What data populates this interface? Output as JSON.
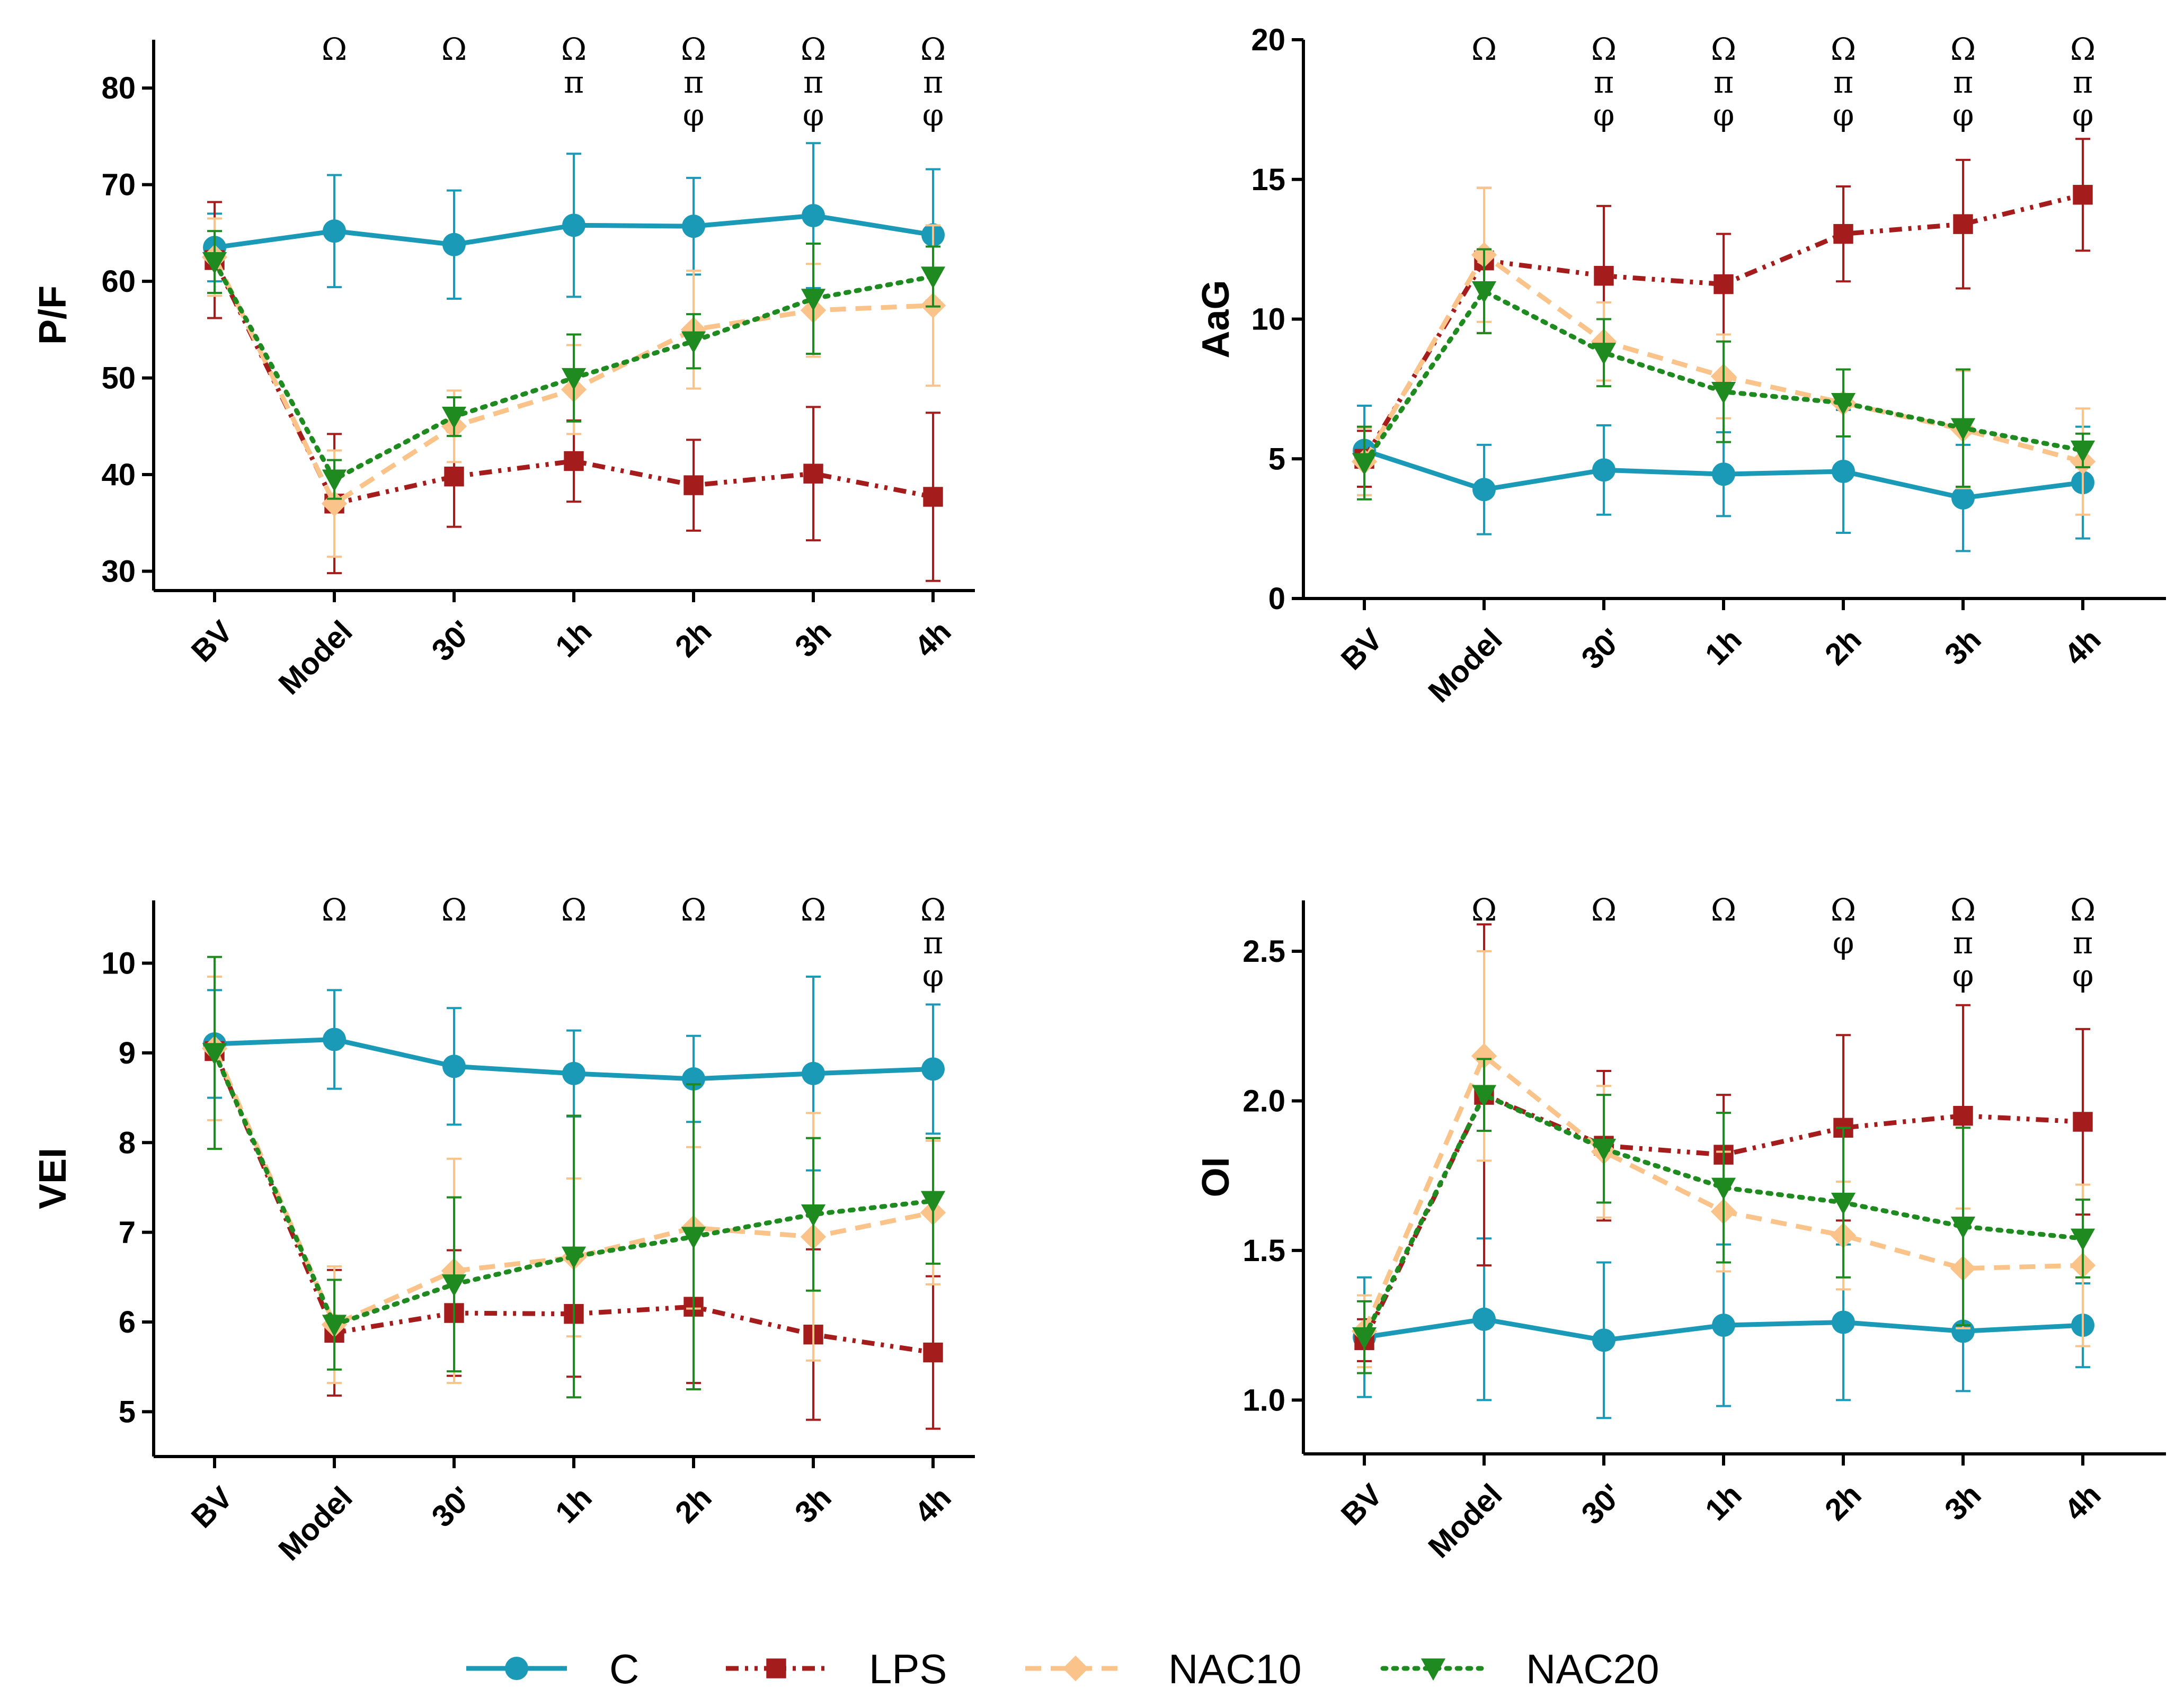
{
  "colors": {
    "C": "#1b9ab8",
    "LPS": "#a51c1c",
    "NAC10": "#f9c38a",
    "NAC20": "#1f8a1f"
  },
  "legend": [
    {
      "key": "C",
      "label": "C",
      "marker": "circle",
      "dash": "solid"
    },
    {
      "key": "LPS",
      "label": "LPS",
      "marker": "square",
      "dash": "dashdot"
    },
    {
      "key": "NAC10",
      "label": "NAC10",
      "marker": "diamond",
      "dash": "dash"
    },
    {
      "key": "NAC20",
      "label": "NAC20",
      "marker": "triangle-down",
      "dash": "dot"
    }
  ],
  "chart_data": [
    {
      "id": "pf",
      "type": "line",
      "ylabel": "P/F",
      "categories": [
        "BV",
        "Model",
        "30'",
        "1h",
        "2h",
        "3h",
        "4h"
      ],
      "ylim": [
        28,
        85
      ],
      "yticks": [
        "30",
        "40",
        "50",
        "60",
        "70",
        "80"
      ],
      "annotations": [
        [],
        [
          "Ω"
        ],
        [
          "Ω"
        ],
        [
          "Ω",
          "π"
        ],
        [
          "Ω",
          "π",
          "φ"
        ],
        [
          "Ω",
          "π",
          "φ"
        ],
        [
          "Ω",
          "π",
          "φ"
        ]
      ],
      "series": [
        {
          "name": "C",
          "values": [
            63.5,
            65.2,
            63.8,
            65.8,
            65.7,
            66.8,
            64.8
          ],
          "errors": [
            3.5,
            5.8,
            5.6,
            7.4,
            5.0,
            7.5,
            6.8
          ]
        },
        {
          "name": "LPS",
          "values": [
            62.2,
            37.0,
            39.8,
            41.4,
            38.9,
            40.1,
            37.7
          ],
          "errors": [
            6.0,
            7.2,
            5.2,
            4.2,
            4.7,
            6.9,
            8.7
          ]
        },
        {
          "name": "NAC10",
          "values": [
            62.5,
            37.0,
            45.0,
            48.8,
            55.0,
            57.0,
            57.5
          ],
          "errors": [
            4.0,
            5.5,
            3.7,
            4.6,
            6.1,
            4.8,
            8.3
          ]
        },
        {
          "name": "NAC20",
          "values": [
            62.0,
            39.5,
            46.0,
            50.0,
            53.8,
            58.2,
            60.5
          ],
          "errors": [
            3.2,
            2.0,
            2.0,
            4.5,
            2.8,
            5.7,
            3.1
          ]
        }
      ]
    },
    {
      "id": "aag",
      "type": "line",
      "ylabel": "AaG",
      "categories": [
        "BV",
        "Model",
        "30'",
        "1h",
        "2h",
        "3h",
        "4h"
      ],
      "ylim": [
        0,
        20
      ],
      "yticks": [
        "0",
        "5",
        "10",
        "15",
        "20"
      ],
      "annotations": [
        [],
        [
          "Ω"
        ],
        [
          "Ω",
          "π",
          "φ"
        ],
        [
          "Ω",
          "π",
          "φ"
        ],
        [
          "Ω",
          "π",
          "φ"
        ],
        [
          "Ω",
          "π",
          "φ"
        ],
        [
          "Ω",
          "π",
          "φ"
        ]
      ],
      "series": [
        {
          "name": "C",
          "values": [
            5.3,
            3.9,
            4.6,
            4.45,
            4.55,
            3.6,
            4.15
          ],
          "errors": [
            1.6,
            1.6,
            1.6,
            1.5,
            2.2,
            1.9,
            2.0
          ]
        },
        {
          "name": "LPS",
          "values": [
            5.0,
            12.1,
            11.55,
            11.25,
            13.05,
            13.4,
            14.45
          ],
          "errors": [
            1.0,
            2.6,
            2.5,
            1.8,
            1.7,
            2.3,
            2.0
          ]
        },
        {
          "name": "NAC10",
          "values": [
            4.9,
            12.3,
            9.2,
            7.95,
            7.0,
            6.05,
            4.9
          ],
          "errors": [
            1.2,
            2.4,
            1.4,
            1.5,
            1.2,
            2.1,
            1.9
          ]
        },
        {
          "name": "NAC20",
          "values": [
            4.85,
            11.0,
            8.8,
            7.4,
            7.0,
            6.1,
            5.3
          ],
          "errors": [
            1.3,
            1.5,
            1.2,
            1.8,
            1.2,
            2.1,
            0.6
          ]
        }
      ]
    },
    {
      "id": "vei",
      "type": "line",
      "ylabel": "VEI",
      "categories": [
        "BV",
        "Model",
        "30'",
        "1h",
        "2h",
        "3h",
        "4h"
      ],
      "ylim": [
        4.5,
        10.7
      ],
      "yticks": [
        "5",
        "6",
        "7",
        "8",
        "9",
        "10"
      ],
      "annotations": [
        [],
        [
          "Ω"
        ],
        [
          "Ω"
        ],
        [
          "Ω"
        ],
        [
          "Ω"
        ],
        [
          "Ω"
        ],
        [
          "Ω",
          "π",
          "φ"
        ]
      ],
      "series": [
        {
          "name": "C",
          "values": [
            9.1,
            9.15,
            8.85,
            8.77,
            8.71,
            8.77,
            8.82
          ],
          "errors": [
            0.6,
            0.55,
            0.65,
            0.48,
            0.48,
            1.08,
            0.72
          ]
        },
        {
          "name": "LPS",
          "values": [
            9.02,
            5.88,
            6.1,
            6.09,
            6.17,
            5.86,
            5.66
          ],
          "errors": [
            0.0,
            0.7,
            0.7,
            0.7,
            0.85,
            0.95,
            0.85
          ]
        },
        {
          "name": "NAC10",
          "values": [
            9.05,
            5.97,
            6.57,
            6.72,
            7.05,
            6.95,
            7.22
          ],
          "errors": [
            0.8,
            0.65,
            1.25,
            0.88,
            0.9,
            1.38,
            0.8
          ]
        },
        {
          "name": "NAC20",
          "values": [
            9.0,
            5.97,
            6.42,
            6.73,
            6.95,
            7.2,
            7.35
          ],
          "errors": [
            1.07,
            0.5,
            0.97,
            1.57,
            1.7,
            0.85,
            0.7
          ]
        }
      ]
    },
    {
      "id": "oi",
      "type": "line",
      "ylabel": "OI",
      "categories": [
        "BV",
        "Model",
        "30'",
        "1h",
        "2h",
        "3h",
        "4h"
      ],
      "ylim": [
        0.82,
        2.67
      ],
      "yticks": [
        "1.0",
        "1.5",
        "2.0",
        "2.5"
      ],
      "annotations": [
        [],
        [
          "Ω"
        ],
        [
          "Ω"
        ],
        [
          "Ω"
        ],
        [
          "Ω",
          "φ"
        ],
        [
          "Ω",
          "π",
          "φ"
        ],
        [
          "Ω",
          "π",
          "φ"
        ]
      ],
      "series": [
        {
          "name": "C",
          "values": [
            1.21,
            1.27,
            1.2,
            1.25,
            1.26,
            1.23,
            1.25
          ],
          "errors": [
            0.2,
            0.27,
            0.26,
            0.27,
            0.26,
            0.2,
            0.14
          ]
        },
        {
          "name": "LPS",
          "values": [
            1.2,
            2.02,
            1.85,
            1.82,
            1.91,
            1.95,
            1.93
          ],
          "errors": [
            0.07,
            0.57,
            0.25,
            0.2,
            0.31,
            0.37,
            0.31
          ]
        },
        {
          "name": "NAC10",
          "values": [
            1.23,
            2.15,
            1.83,
            1.63,
            1.55,
            1.44,
            1.45
          ],
          "errors": [
            0.12,
            0.35,
            0.22,
            0.2,
            0.18,
            0.2,
            0.27
          ]
        },
        {
          "name": "NAC20",
          "values": [
            1.21,
            2.02,
            1.84,
            1.71,
            1.66,
            1.58,
            1.54
          ],
          "errors": [
            0.12,
            0.12,
            0.18,
            0.25,
            0.25,
            0.33,
            0.13
          ]
        }
      ]
    }
  ]
}
